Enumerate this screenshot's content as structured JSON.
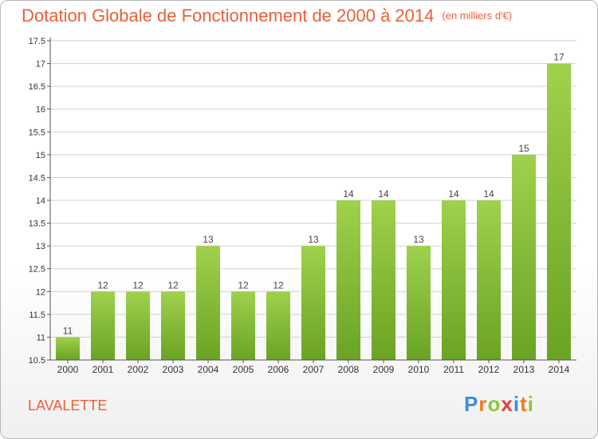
{
  "title": "Dotation Globale de Fonctionnement de 2000 à 2014",
  "unit": "(en milliers d'€)",
  "commune": "LAVALETTE",
  "logo": "Proxiti",
  "colors": {
    "title": "#e8603c",
    "bar_top": "#9fd14c",
    "bar_bottom": "#6aa324",
    "axis": "#555555",
    "grid": "#d0d0d0"
  },
  "chart_data": {
    "type": "bar",
    "categories": [
      "2000",
      "2001",
      "2002",
      "2003",
      "2004",
      "2005",
      "2006",
      "2007",
      "2008",
      "2009",
      "2010",
      "2011",
      "2012",
      "2013",
      "2014"
    ],
    "values": [
      11,
      12,
      12,
      12,
      13,
      12,
      12,
      13,
      14,
      14,
      13,
      14,
      14,
      15,
      17
    ],
    "data_labels": [
      "11",
      "12",
      "12",
      "12",
      "13",
      "12",
      "12",
      "13",
      "14",
      "14",
      "13",
      "14",
      "14",
      "15",
      "17"
    ],
    "bar_levels": [
      11,
      12,
      12,
      12,
      13,
      12,
      12,
      13,
      14,
      14,
      13,
      14,
      14,
      15,
      17
    ],
    "yticks": [
      10.5,
      11,
      11.5,
      12,
      12.5,
      13,
      13.5,
      14,
      14.5,
      15,
      15.5,
      16,
      16.5,
      17,
      17.5
    ],
    "ytick_labels": [
      "10.5",
      "11",
      "11.5",
      "12",
      "12.5",
      "13",
      "13.5",
      "14",
      "14.5",
      "15",
      "15.5",
      "16",
      "16.5",
      "17",
      "17.5"
    ],
    "ylim": [
      10.5,
      17.5
    ],
    "grid": true,
    "legend": "none"
  }
}
